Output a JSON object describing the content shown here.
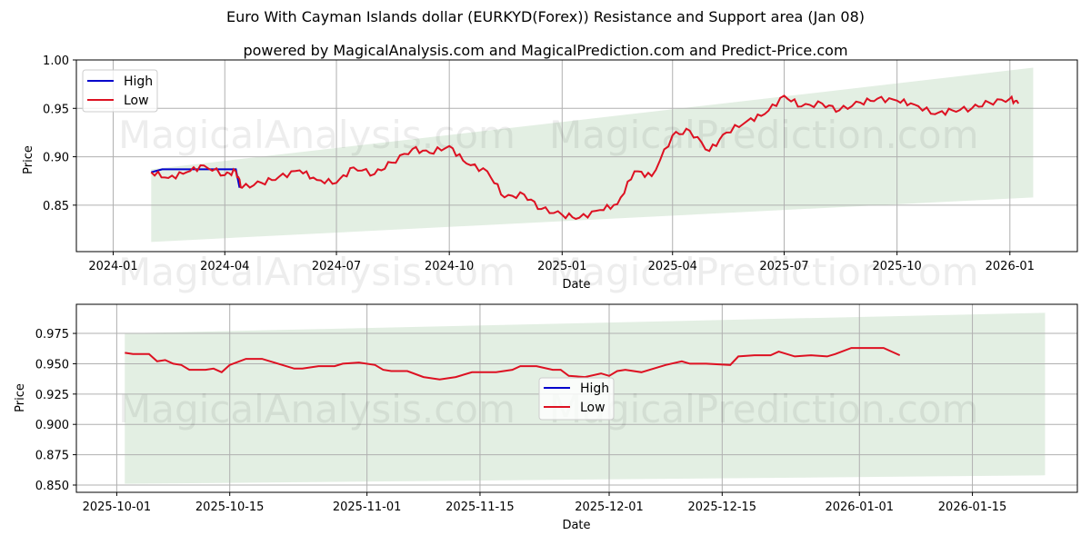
{
  "header": {
    "title": "Euro With Cayman Islands dollar (EURKYD(Forex)) Resistance and Support area (Jan 08)",
    "subtitle": "powered by MagicalAnalysis.com and MagicalPrediction.com and Predict-Price.com"
  },
  "watermarks": [
    "MagicalAnalysis.com",
    "MagicalPrediction.com"
  ],
  "colors": {
    "high": "#0000cc",
    "low": "#dd1122",
    "band": "#d9ead9",
    "grid": "#b0b0b0"
  },
  "chart_data": [
    {
      "type": "line",
      "title": "",
      "xlabel": "Date",
      "ylabel": "Price",
      "ylim": [
        0.802,
        1.0
      ],
      "grid": true,
      "legend_position": "upper left",
      "legend": [
        "High",
        "Low"
      ],
      "x_ticks": [
        "2024-01",
        "2024-04",
        "2024-07",
        "2024-10",
        "2025-01",
        "2025-04",
        "2025-07",
        "2025-10",
        "2026-01"
      ],
      "y_ticks": [
        "0.85",
        "0.90",
        "0.95",
        "1.00"
      ],
      "band": {
        "label": "Resistance and Support area",
        "start": "2024-02",
        "end": "2026-01-20",
        "lower_start": 0.812,
        "lower_end": 0.858,
        "upper_start": 0.887,
        "upper_end": 0.992
      },
      "series": [
        {
          "name": "Low",
          "x": [
            "2024-02-01",
            "2024-02-15",
            "2024-03-01",
            "2024-03-15",
            "2024-04-01",
            "2024-04-10",
            "2024-04-15",
            "2024-05-01",
            "2024-05-15",
            "2024-06-01",
            "2024-06-15",
            "2024-07-01",
            "2024-07-15",
            "2024-08-01",
            "2024-08-15",
            "2024-09-01",
            "2024-09-15",
            "2024-10-01",
            "2024-10-15",
            "2024-11-01",
            "2024-11-15",
            "2024-12-01",
            "2024-12-15",
            "2025-01-01",
            "2025-01-15",
            "2025-02-01",
            "2025-02-15",
            "2025-03-01",
            "2025-03-15",
            "2025-04-01",
            "2025-04-15",
            "2025-05-01",
            "2025-05-15",
            "2025-06-01",
            "2025-06-15",
            "2025-07-01",
            "2025-07-15",
            "2025-08-01",
            "2025-08-15",
            "2025-09-01",
            "2025-09-15",
            "2025-10-01",
            "2025-10-15",
            "2025-11-01",
            "2025-11-15",
            "2025-12-01",
            "2025-12-15",
            "2026-01-01",
            "2026-01-08"
          ],
          "values": [
            0.884,
            0.878,
            0.884,
            0.891,
            0.881,
            0.885,
            0.868,
            0.873,
            0.879,
            0.886,
            0.876,
            0.873,
            0.889,
            0.882,
            0.894,
            0.908,
            0.904,
            0.911,
            0.893,
            0.885,
            0.858,
            0.861,
            0.846,
            0.84,
            0.837,
            0.845,
            0.851,
            0.885,
            0.88,
            0.922,
            0.927,
            0.906,
            0.925,
            0.937,
            0.944,
            0.963,
            0.952,
            0.955,
            0.948,
            0.956,
            0.96,
            0.958,
            0.954,
            0.944,
            0.948,
            0.95,
            0.956,
            0.96,
            0.955
          ]
        },
        {
          "name": "High",
          "x": [
            "2024-02-01",
            "2024-02-10",
            "2024-04-10",
            "2024-04-13"
          ],
          "values": [
            0.884,
            0.887,
            0.887,
            0.868
          ]
        }
      ]
    },
    {
      "type": "line",
      "title": "",
      "xlabel": "Date",
      "ylabel": "Price",
      "ylim": [
        0.844,
        0.999
      ],
      "grid": true,
      "legend_position": "lower center",
      "legend": [
        "High",
        "Low"
      ],
      "x_ticks": [
        "2025-10-01",
        "2025-10-15",
        "2025-11-01",
        "2025-11-15",
        "2025-12-01",
        "2025-12-15",
        "2026-01-01",
        "2026-01-15"
      ],
      "y_ticks": [
        "0.850",
        "0.875",
        "0.900",
        "0.925",
        "0.950",
        "0.975"
      ],
      "band": {
        "start": "2025-10-02",
        "end": "2026-01-24",
        "lower_start": 0.851,
        "lower_end": 0.858,
        "upper_start": 0.975,
        "upper_end": 0.992
      },
      "series": [
        {
          "name": "Low",
          "x": [
            "2025-10-02",
            "2025-10-03",
            "2025-10-05",
            "2025-10-06",
            "2025-10-07",
            "2025-10-08",
            "2025-10-09",
            "2025-10-10",
            "2025-10-12",
            "2025-10-13",
            "2025-10-14",
            "2025-10-15",
            "2025-10-17",
            "2025-10-19",
            "2025-10-21",
            "2025-10-23",
            "2025-10-24",
            "2025-10-26",
            "2025-10-28",
            "2025-10-29",
            "2025-10-31",
            "2025-11-02",
            "2025-11-03",
            "2025-11-04",
            "2025-11-06",
            "2025-11-08",
            "2025-11-10",
            "2025-11-12",
            "2025-11-14",
            "2025-11-17",
            "2025-11-19",
            "2025-11-20",
            "2025-11-22",
            "2025-11-24",
            "2025-11-25",
            "2025-11-26",
            "2025-11-28",
            "2025-11-30",
            "2025-12-01",
            "2025-12-02",
            "2025-12-03",
            "2025-12-05",
            "2025-12-08",
            "2025-12-10",
            "2025-12-11",
            "2025-12-13",
            "2025-12-16",
            "2025-12-17",
            "2025-12-19",
            "2025-12-21",
            "2025-12-22",
            "2025-12-24",
            "2025-12-26",
            "2025-12-28",
            "2025-12-29",
            "2025-12-31",
            "2026-01-02",
            "2026-01-04",
            "2026-01-05",
            "2026-01-06"
          ],
          "values": [
            0.959,
            0.958,
            0.958,
            0.952,
            0.953,
            0.95,
            0.949,
            0.945,
            0.945,
            0.946,
            0.943,
            0.949,
            0.954,
            0.954,
            0.95,
            0.946,
            0.946,
            0.948,
            0.948,
            0.95,
            0.951,
            0.949,
            0.945,
            0.944,
            0.944,
            0.939,
            0.937,
            0.939,
            0.943,
            0.943,
            0.945,
            0.948,
            0.948,
            0.945,
            0.945,
            0.94,
            0.939,
            0.942,
            0.94,
            0.944,
            0.945,
            0.943,
            0.949,
            0.952,
            0.95,
            0.95,
            0.949,
            0.956,
            0.957,
            0.957,
            0.96,
            0.956,
            0.957,
            0.956,
            0.958,
            0.963,
            0.963,
            0.963,
            0.96,
            0.957
          ]
        }
      ]
    }
  ]
}
